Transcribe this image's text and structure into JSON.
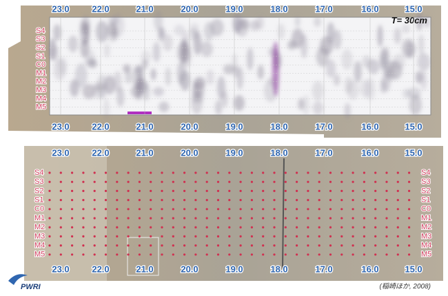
{
  "distance_labels": [
    "23.0",
    "22.0",
    "21.0",
    "20.0",
    "19.0",
    "18.0",
    "17.0",
    "16.0",
    "15.0"
  ],
  "row_labels": [
    "S4",
    "S3",
    "S2",
    "S1",
    "C0",
    "M1",
    "M2",
    "M3",
    "M4",
    "M5"
  ],
  "scan_panel": {
    "thickness_label": "T= 30cm"
  },
  "caption": "(稲崎ほか, 2008)",
  "logo": "PWRI"
}
